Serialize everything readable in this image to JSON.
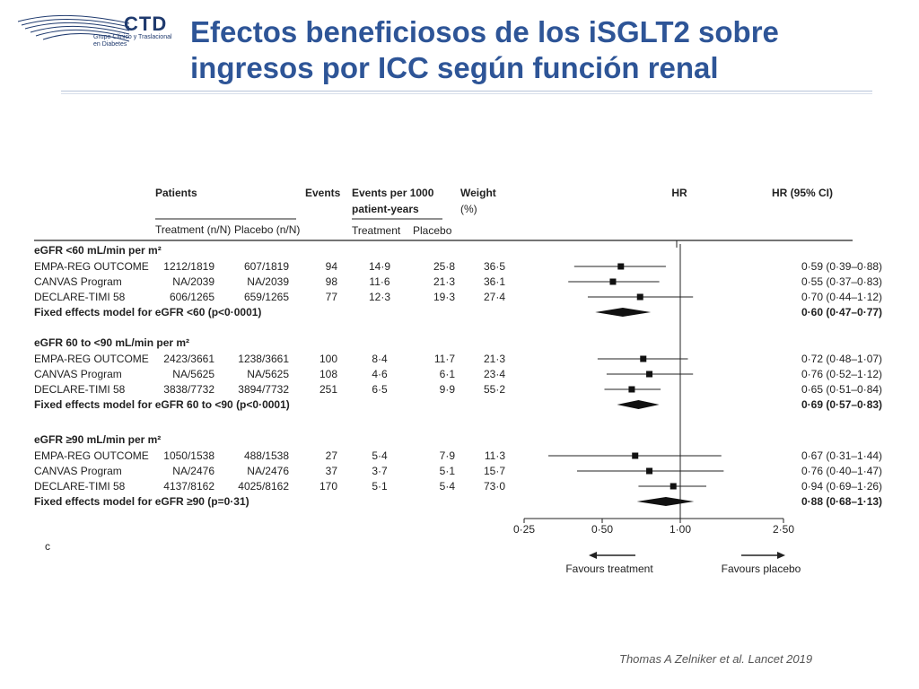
{
  "header": {
    "logo": {
      "name": "CTD",
      "line1": "Grupo Clínico y Traslacional",
      "line2": "en Diabetes"
    },
    "title_line1": "Efectos beneficiosos de los iSGLT2 sobre",
    "title_line2": "ingresos por ICC según función renal"
  },
  "citation": "Thomas A Zelniker et al. Lancet 2019",
  "chart_data": {
    "type": "forest",
    "columns": {
      "patients": "Patients",
      "treatment": "Treatment (n/N)",
      "placebo": "Placebo (n/N)",
      "events": "Events",
      "events_per_1000_l1": "Events per 1000",
      "events_per_1000_l2": "patient-years",
      "ep_treatment": "Treatment",
      "ep_placebo": "Placebo",
      "weight_l1": "Weight",
      "weight_l2": "(%)",
      "hr": "HR",
      "hr_ci": "HR (95% CI)"
    },
    "x_axis": {
      "scale": "log",
      "range": [
        0.25,
        2.5
      ],
      "ticks": [
        0.25,
        0.5,
        1.0,
        2.5
      ],
      "tick_labels": [
        "0·25",
        "0·50",
        "1·00",
        "2·50"
      ],
      "reference": 1.0
    },
    "favours_left": "Favours treatment",
    "favours_right": "Favours placebo",
    "groups": [
      {
        "label": "eGFR <60 mL/min per m²",
        "studies": [
          {
            "name": "EMPA-REG OUTCOME",
            "treatment": "1212/1819",
            "placebo": "607/1819",
            "events": "94",
            "rate_t": "14·9",
            "rate_p": "25·8",
            "weight": "36·5",
            "hr": 0.59,
            "lo": 0.39,
            "hi": 0.88,
            "hr_text": "0·59 (0·39–0·88)"
          },
          {
            "name": "CANVAS Program",
            "treatment": "NA/2039",
            "placebo": "NA/2039",
            "events": "98",
            "rate_t": "11·6",
            "rate_p": "21·3",
            "weight": "36·1",
            "hr": 0.55,
            "lo": 0.37,
            "hi": 0.83,
            "hr_text": "0·55 (0·37–0·83)"
          },
          {
            "name": "DECLARE-TIMI 58",
            "treatment": "606/1265",
            "placebo": "659/1265",
            "events": "77",
            "rate_t": "12·3",
            "rate_p": "19·3",
            "weight": "27·4",
            "hr": 0.7,
            "lo": 0.44,
            "hi": 1.12,
            "hr_text": "0·70 (0·44–1·12)"
          }
        ],
        "fixed": {
          "label": "Fixed effects model for eGFR <60 (p<0·0001)",
          "hr": 0.6,
          "lo": 0.47,
          "hi": 0.77,
          "hr_text": "0·60 (0·47–0·77)"
        }
      },
      {
        "label": "eGFR 60 to <90 mL/min per m²",
        "studies": [
          {
            "name": "EMPA-REG OUTCOME",
            "treatment": "2423/3661",
            "placebo": "1238/3661",
            "events": "100",
            "rate_t": "8·4",
            "rate_p": "11·7",
            "weight": "21·3",
            "hr": 0.72,
            "lo": 0.48,
            "hi": 1.07,
            "hr_text": "0·72 (0·48–1·07)"
          },
          {
            "name": "CANVAS Program",
            "treatment": "NA/5625",
            "placebo": "NA/5625",
            "events": "108",
            "rate_t": "4·6",
            "rate_p": "6·1",
            "weight": "23·4",
            "hr": 0.76,
            "lo": 0.52,
            "hi": 1.12,
            "hr_text": "0·76 (0·52–1·12)"
          },
          {
            "name": "DECLARE-TIMI 58",
            "treatment": "3838/7732",
            "placebo": "3894/7732",
            "events": "251",
            "rate_t": "6·5",
            "rate_p": "9·9",
            "weight": "55·2",
            "hr": 0.65,
            "lo": 0.51,
            "hi": 0.84,
            "hr_text": "0·65 (0·51–0·84)"
          }
        ],
        "fixed": {
          "label": "Fixed effects model for eGFR 60 to <90 (p<0·0001)",
          "hr": 0.69,
          "lo": 0.57,
          "hi": 0.83,
          "hr_text": "0·69 (0·57–0·83)"
        }
      },
      {
        "label": "eGFR ≥90 mL/min per m²",
        "studies": [
          {
            "name": "EMPA-REG OUTCOME",
            "treatment": "1050/1538",
            "placebo": "488/1538",
            "events": "27",
            "rate_t": "5·4",
            "rate_p": "7·9",
            "weight": "11·3",
            "hr": 0.67,
            "lo": 0.31,
            "hi": 1.44,
            "hr_text": "0·67 (0·31–1·44)"
          },
          {
            "name": "CANVAS Program",
            "treatment": "NA/2476",
            "placebo": "NA/2476",
            "events": "37",
            "rate_t": "3·7",
            "rate_p": "5·1",
            "weight": "15·7",
            "hr": 0.76,
            "lo": 0.4,
            "hi": 1.47,
            "hr_text": "0·76 (0·40–1·47)"
          },
          {
            "name": "DECLARE-TIMI 58",
            "treatment": "4137/8162",
            "placebo": "4025/8162",
            "events": "170",
            "rate_t": "5·1",
            "rate_p": "5·4",
            "weight": "73·0",
            "hr": 0.94,
            "lo": 0.69,
            "hi": 1.26,
            "hr_text": "0·94 (0·69–1·26)"
          }
        ],
        "fixed": {
          "label": "Fixed effects model for eGFR ≥90 (p=0·31)",
          "hr": 0.88,
          "lo": 0.68,
          "hi": 1.13,
          "hr_text": "0·88 (0·68–1·13)"
        }
      }
    ],
    "footnote_mark": "c"
  }
}
